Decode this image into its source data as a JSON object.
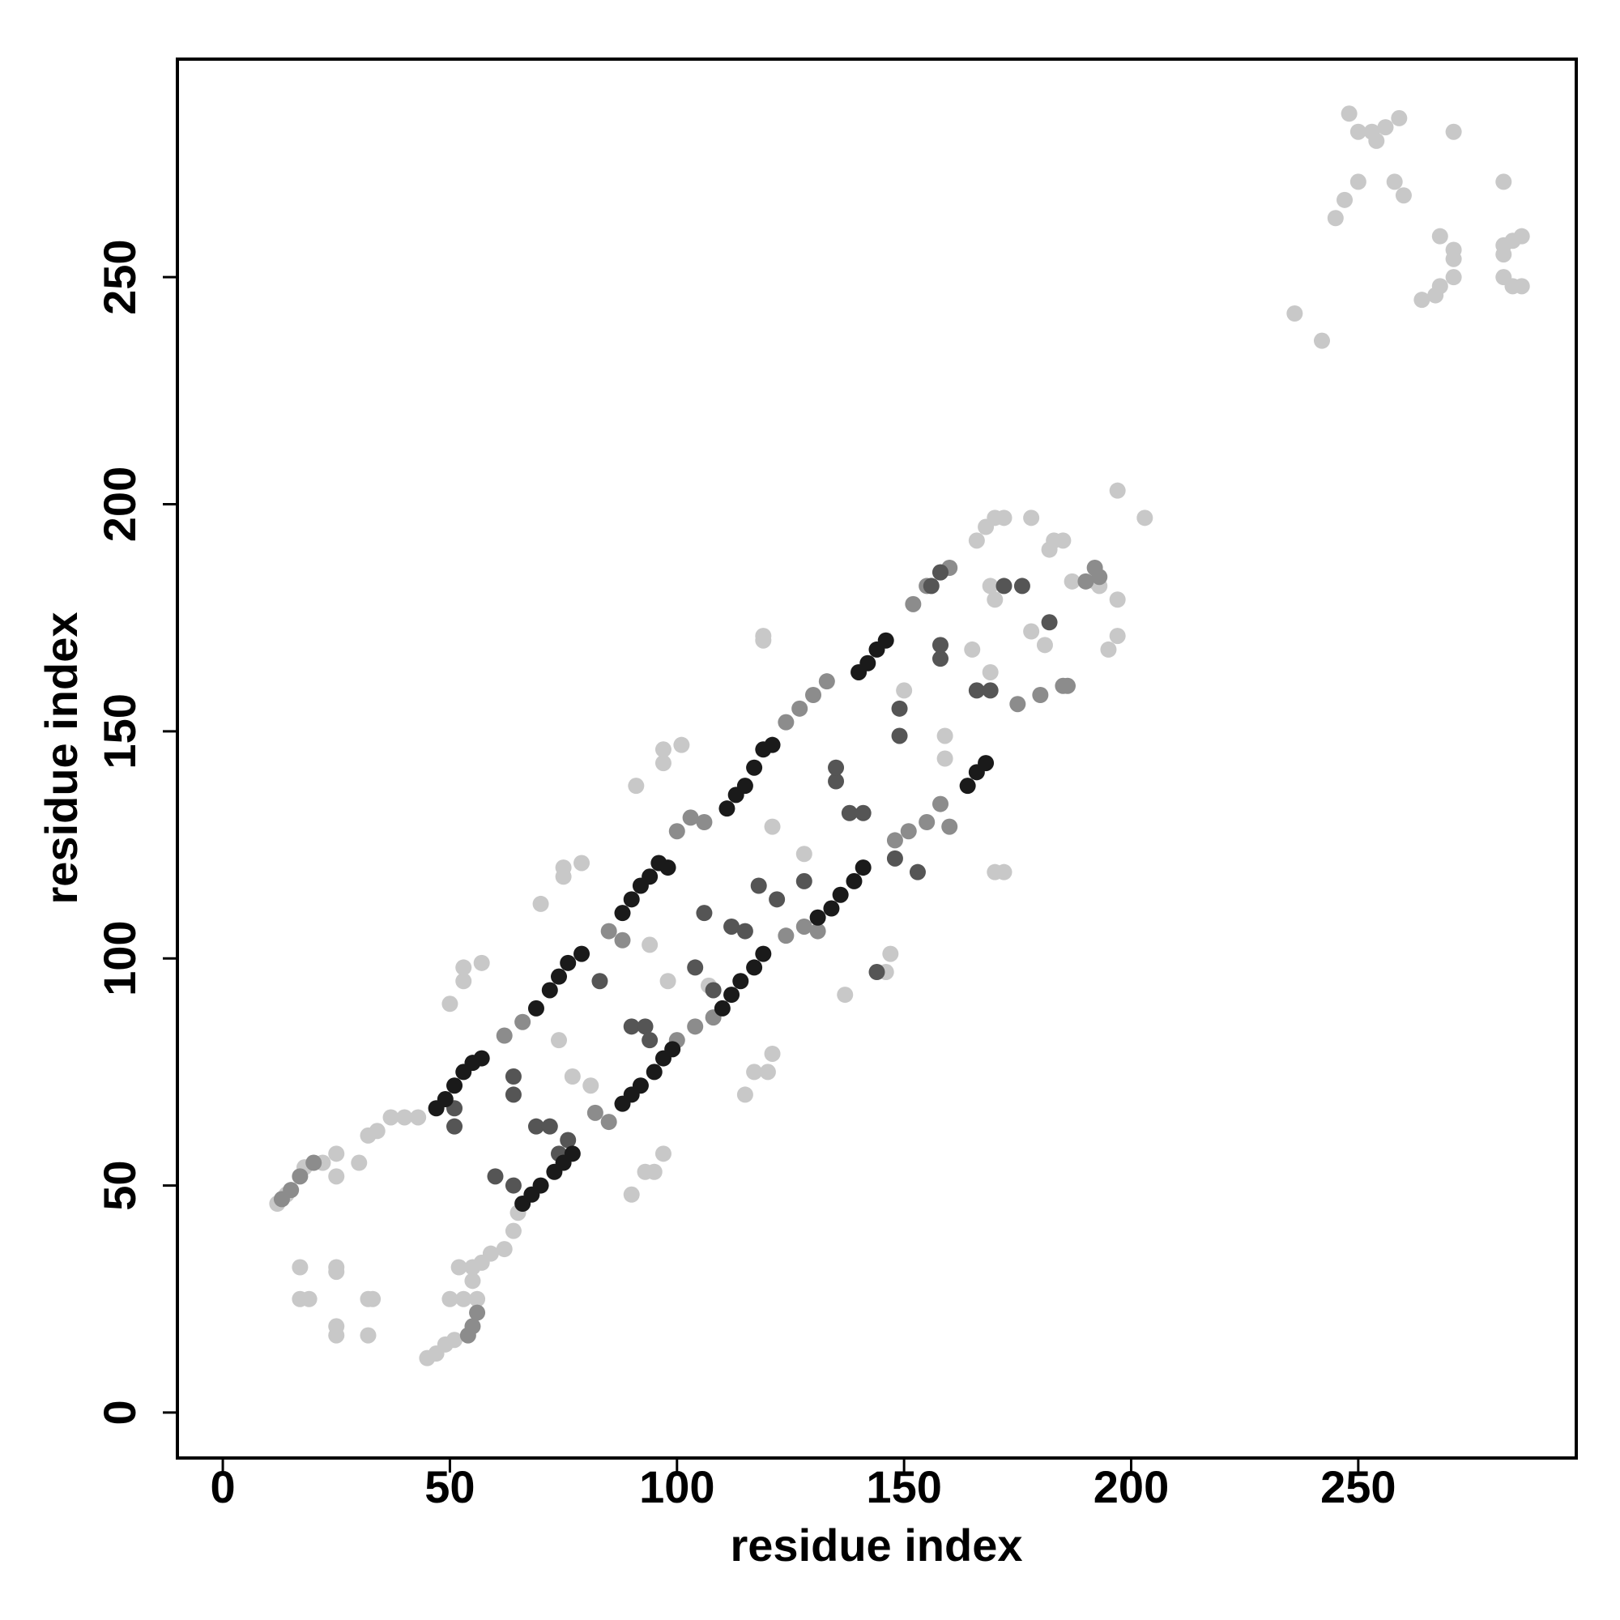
{
  "chart_data": {
    "type": "scatter",
    "x_label": "residue index",
    "y_label": "residue index",
    "xlim": [
      -10,
      298
    ],
    "ylim": [
      -10,
      298
    ],
    "xticks": [
      0,
      50,
      100,
      150,
      200,
      250
    ],
    "yticks": [
      0,
      50,
      100,
      150,
      200,
      250
    ],
    "series": [
      {
        "color": "#c8c8c8",
        "x": [
          12,
          14,
          18,
          22,
          25,
          25,
          30,
          32,
          34,
          37,
          40,
          43,
          45,
          47,
          49,
          51,
          53,
          55,
          57,
          59,
          62,
          64,
          65,
          17,
          17,
          19,
          25,
          25,
          25,
          25,
          32,
          33,
          32,
          50,
          52,
          55,
          56,
          50,
          53,
          53,
          57,
          70,
          74,
          75,
          75,
          79,
          77,
          81,
          90,
          93,
          95,
          97,
          91,
          97,
          97,
          101,
          94,
          98,
          107,
          115,
          117,
          120,
          121,
          121,
          119,
          119,
          128,
          137,
          146,
          147,
          150,
          159,
          159,
          165,
          169,
          169,
          170,
          170,
          172,
          166,
          168,
          170,
          172,
          178,
          182,
          183,
          185,
          187,
          192,
          193,
          195,
          197,
          197,
          203,
          197,
          178,
          181,
          236,
          242,
          245,
          247,
          248,
          250,
          250,
          253,
          254,
          256,
          258,
          260,
          259,
          264,
          267,
          268,
          268,
          271,
          271,
          271,
          271,
          282,
          282,
          282,
          282,
          284,
          284,
          286,
          286
        ],
        "y": [
          46,
          48,
          54,
          55,
          57,
          52,
          55,
          61,
          62,
          65,
          65,
          65,
          12,
          13,
          15,
          16,
          25,
          29,
          33,
          35,
          36,
          40,
          44,
          32,
          25,
          25,
          32,
          31,
          19,
          17,
          25,
          25,
          17,
          25,
          32,
          32,
          25,
          90,
          95,
          98,
          99,
          112,
          82,
          118,
          120,
          121,
          74,
          72,
          48,
          53,
          53,
          57,
          138,
          143,
          146,
          147,
          103,
          95,
          94,
          70,
          75,
          75,
          79,
          129,
          170,
          171,
          123,
          92,
          97,
          101,
          159,
          149,
          144,
          168,
          182,
          163,
          179,
          119,
          119,
          192,
          195,
          197,
          197,
          197,
          190,
          192,
          192,
          183,
          183,
          182,
          168,
          171,
          179,
          197,
          203,
          172,
          169,
          242,
          236,
          263,
          267,
          286,
          282,
          271,
          282,
          280,
          283,
          271,
          268,
          285,
          245,
          246,
          248,
          259,
          256,
          254,
          282,
          250,
          271,
          257,
          255,
          250,
          258,
          248,
          259,
          248
        ]
      },
      {
        "color": "#8c8c8c",
        "x": [
          13,
          15,
          17,
          20,
          54,
          55,
          56,
          85,
          88,
          100,
          103,
          106,
          124,
          127,
          130,
          133,
          152,
          155,
          158,
          160,
          124,
          128,
          131,
          155,
          158,
          160,
          175,
          180,
          185,
          190,
          192,
          193,
          186,
          62,
          66,
          100,
          104,
          108,
          82,
          85,
          148,
          151
        ],
        "y": [
          47,
          49,
          52,
          55,
          17,
          19,
          22,
          106,
          104,
          128,
          131,
          130,
          152,
          155,
          158,
          161,
          178,
          182,
          185,
          186,
          105,
          107,
          106,
          130,
          134,
          129,
          156,
          158,
          160,
          183,
          186,
          184,
          160,
          83,
          86,
          82,
          85,
          87,
          66,
          64,
          126,
          128
        ]
      },
      {
        "color": "#555555",
        "x": [
          51,
          51,
          64,
          64,
          69,
          72,
          83,
          90,
          93,
          94,
          76,
          74,
          60,
          64,
          104,
          108,
          106,
          112,
          115,
          122,
          118,
          128,
          135,
          135,
          138,
          141,
          144,
          149,
          149,
          158,
          158,
          166,
          169,
          172,
          176,
          182,
          148,
          153,
          156,
          158
        ],
        "y": [
          63,
          67,
          70,
          74,
          63,
          63,
          95,
          85,
          85,
          82,
          60,
          57,
          52,
          50,
          98,
          93,
          110,
          107,
          106,
          113,
          116,
          117,
          139,
          142,
          132,
          132,
          97,
          155,
          149,
          166,
          169,
          159,
          159,
          182,
          182,
          174,
          122,
          119,
          182,
          185
        ]
      },
      {
        "color": "#1a1a1a",
        "x": [
          47,
          49,
          51,
          53,
          55,
          57,
          69,
          72,
          74,
          76,
          79,
          88,
          90,
          92,
          94,
          96,
          98,
          111,
          113,
          115,
          117,
          119,
          121,
          140,
          142,
          144,
          146,
          66,
          68,
          70,
          73,
          75,
          77,
          88,
          90,
          92,
          95,
          97,
          99,
          110,
          112,
          114,
          117,
          119,
          131,
          134,
          136,
          139,
          141,
          164,
          166,
          168
        ],
        "y": [
          67,
          69,
          72,
          75,
          77,
          78,
          89,
          93,
          96,
          99,
          101,
          110,
          113,
          116,
          118,
          121,
          120,
          133,
          136,
          138,
          142,
          146,
          147,
          163,
          165,
          168,
          170,
          46,
          48,
          50,
          53,
          55,
          57,
          68,
          70,
          72,
          75,
          78,
          80,
          89,
          92,
          95,
          98,
          101,
          109,
          111,
          114,
          117,
          120,
          138,
          141,
          143
        ]
      }
    ]
  }
}
